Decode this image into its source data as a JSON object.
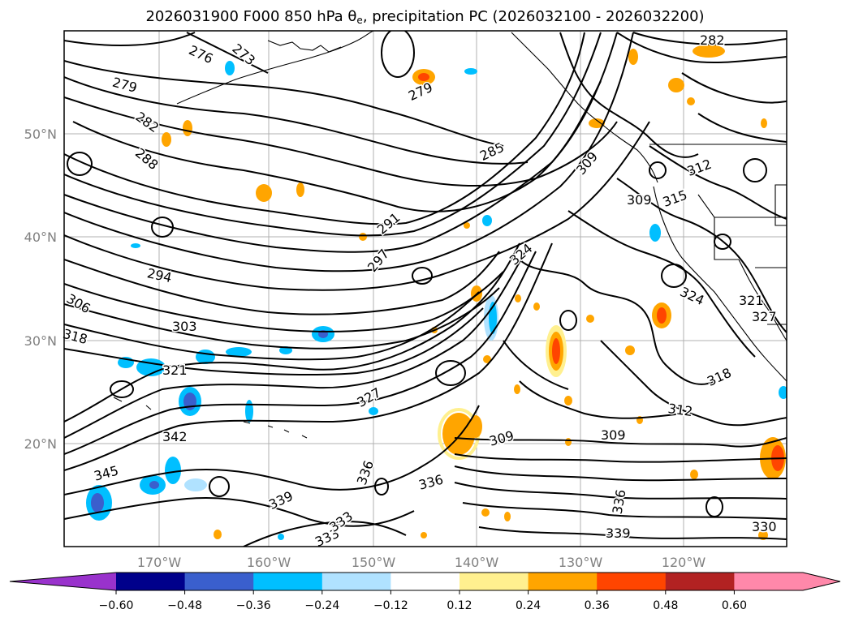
{
  "title": {
    "prefix": "2026031900 F000 850 hPa θ",
    "subscript": "e",
    "suffix": ", precipitation PC (2026032100 - 2026032200)"
  },
  "lon_labels": [
    "170°W",
    "160°W",
    "150°W",
    "140°W",
    "130°W",
    "120°W"
  ],
  "lat_labels": [
    "50°N",
    "40°N",
    "30°N",
    "20°N"
  ],
  "contour_labels": [
    "276",
    "273",
    "279",
    "282",
    "288",
    "285",
    "291",
    "297",
    "294",
    "303",
    "306",
    "309",
    "312",
    "315",
    "318",
    "321",
    "324",
    "327",
    "330",
    "333",
    "336",
    "339",
    "342",
    "345",
    "279",
    "282",
    "309",
    "309",
    "312",
    "309",
    "336",
    "339",
    "333",
    "336",
    "318",
    "321",
    "327",
    "324"
  ],
  "colorbar": {
    "ticks": [
      "−0.60",
      "−0.48",
      "−0.36",
      "−0.24",
      "−0.12",
      "0.12",
      "0.24",
      "0.36",
      "0.48",
      "0.60"
    ],
    "colors": [
      "#9932cc",
      "#00008b",
      "#3a5fcd",
      "#00bfff",
      "#b0e2ff",
      "#ffffff",
      "#fff08f",
      "#ffa500",
      "#ff4500",
      "#b22222",
      "#ff88aa",
      "#ff88aa"
    ]
  }
}
